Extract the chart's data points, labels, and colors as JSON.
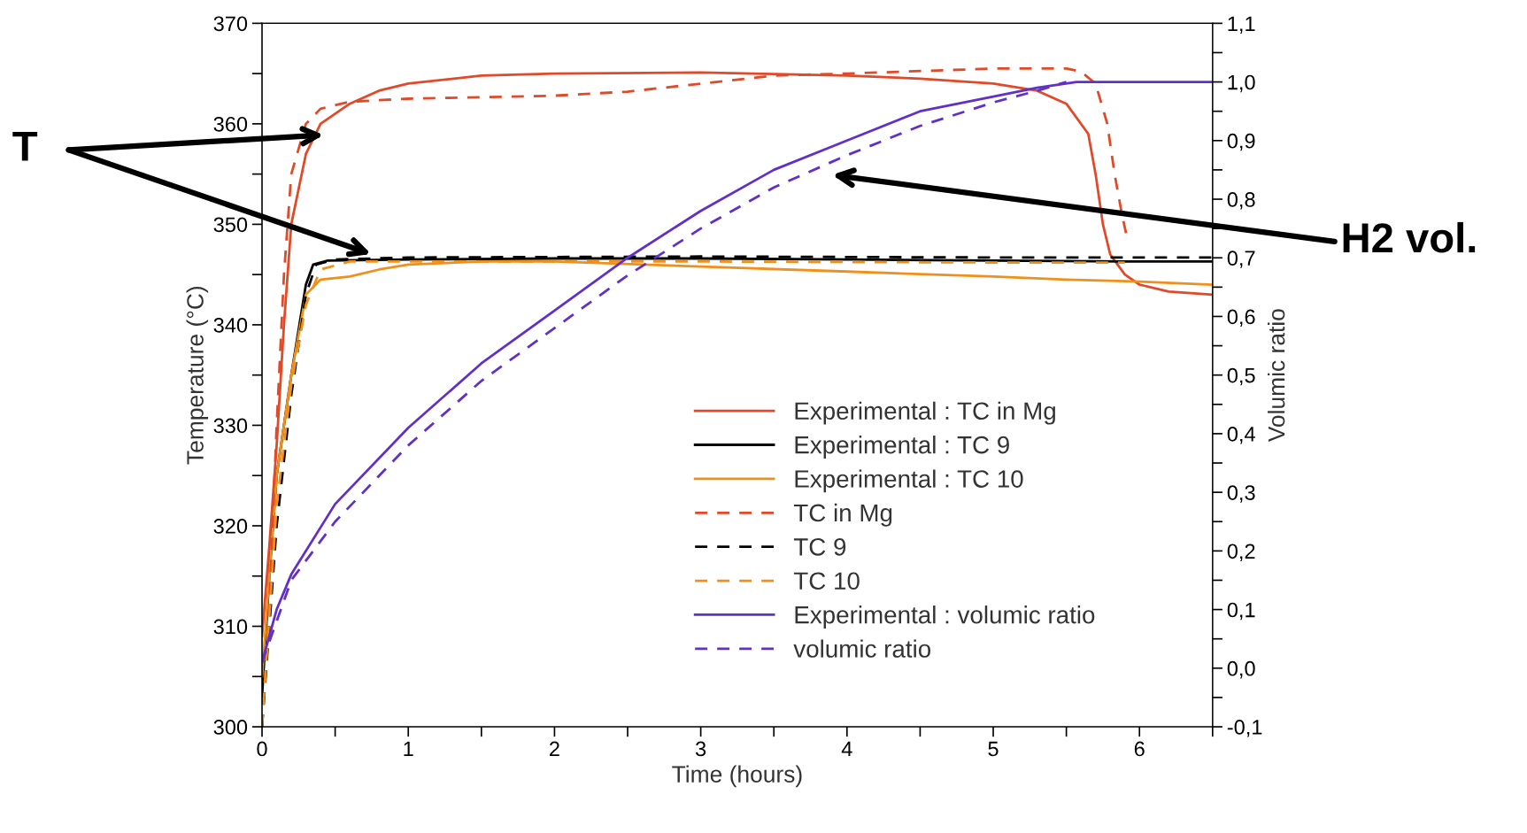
{
  "chart_data": {
    "type": "line",
    "xlabel": "Time (hours)",
    "ylabel": "Temperature (°C)",
    "y2label": "Volumic ratio",
    "xlim": [
      0,
      6.5
    ],
    "xticks": [
      0,
      {
        "value": 0.5,
        "label": null
      },
      1,
      {
        "value": 1.5,
        "label": null
      },
      2,
      {
        "value": 2.5,
        "label": null
      },
      3,
      {
        "value": 3.5,
        "label": null
      },
      4,
      {
        "value": 4.5,
        "label": null
      },
      5,
      {
        "value": 5.5,
        "label": null
      },
      6,
      {
        "value": 6.5,
        "label": null
      }
    ],
    "ylim": [
      300,
      370
    ],
    "yticks": [
      300,
      {
        "value": 305,
        "label": null
      },
      310,
      {
        "value": 315,
        "label": null
      },
      320,
      {
        "value": 325,
        "label": null
      },
      330,
      {
        "value": 335,
        "label": null
      },
      340,
      {
        "value": 345,
        "label": null
      },
      350,
      {
        "value": 355,
        "label": null
      },
      360,
      {
        "value": 365,
        "label": null
      },
      370
    ],
    "y2lim": [
      -0.1,
      1.1
    ],
    "y2ticks": [
      {
        "value": -0.1,
        "label": "-0,1"
      },
      {
        "value": -0.05,
        "label": null
      },
      {
        "value": 0.0,
        "label": "0,0"
      },
      {
        "value": 0.05,
        "label": null
      },
      {
        "value": 0.1,
        "label": "0,1"
      },
      {
        "value": 0.15,
        "label": null
      },
      {
        "value": 0.2,
        "label": "0,2"
      },
      {
        "value": 0.25,
        "label": null
      },
      {
        "value": 0.3,
        "label": "0,3"
      },
      {
        "value": 0.35,
        "label": null
      },
      {
        "value": 0.4,
        "label": "0,4"
      },
      {
        "value": 0.45,
        "label": null
      },
      {
        "value": 0.5,
        "label": "0,5"
      },
      {
        "value": 0.55,
        "label": null
      },
      {
        "value": 0.6,
        "label": "0,6"
      },
      {
        "value": 0.65,
        "label": null
      },
      {
        "value": 0.7,
        "label": "0,7"
      },
      {
        "value": 0.75,
        "label": null
      },
      {
        "value": 0.8,
        "label": "0,8"
      },
      {
        "value": 0.85,
        "label": null
      },
      {
        "value": 0.9,
        "label": "0,9"
      },
      {
        "value": 0.95,
        "label": null
      },
      {
        "value": 1.0,
        "label": "1,0"
      },
      {
        "value": 1.05,
        "label": null
      },
      {
        "value": 1.1,
        "label": "1,1"
      }
    ],
    "grid": false,
    "legend": "bottom right",
    "marker": "none",
    "series": [
      {
        "name": "Experimental : TC in Mg",
        "color": "#e04a28",
        "line_style": "solid",
        "x": [
          0,
          0.05,
          0.1,
          0.15,
          0.2,
          0.3,
          0.4,
          0.6,
          0.8,
          1.0,
          1.5,
          2,
          3,
          4,
          4.5,
          5,
          5.3,
          5.5,
          5.65,
          5.7,
          5.75,
          5.8,
          5.9,
          6.0,
          6.2,
          6.5
        ],
        "values": [
          309,
          318,
          328,
          340,
          350,
          357,
          360,
          362,
          363.3,
          364,
          364.8,
          365,
          365.1,
          364.8,
          364.5,
          364,
          363.3,
          362,
          359,
          355,
          350,
          347,
          345,
          344,
          343.3,
          343
        ]
      },
      {
        "name": "Experimental : TC 9",
        "color": "#000000",
        "line_style": "solid",
        "x": [
          0,
          0.05,
          0.1,
          0.2,
          0.3,
          0.35,
          0.45,
          1,
          2,
          3,
          4,
          5,
          6,
          6.5
        ],
        "values": [
          303,
          315,
          325,
          335,
          344,
          346,
          346.4,
          346.5,
          346.6,
          346.6,
          346.5,
          346.4,
          346.3,
          346.3
        ]
      },
      {
        "name": "Experimental : TC 10",
        "color": "#f0901c",
        "line_style": "solid",
        "x": [
          0,
          0.1,
          0.2,
          0.3,
          0.4,
          0.6,
          0.8,
          1,
          1.5,
          2,
          3,
          4,
          5,
          5.5,
          6,
          6.5
        ],
        "values": [
          305,
          325,
          335,
          343,
          344.5,
          344.8,
          345.5,
          346,
          346.3,
          346.3,
          345.8,
          345.3,
          344.8,
          344.5,
          344.3,
          344
        ]
      },
      {
        "name": "TC in Mg",
        "color": "#e04a28",
        "line_style": "dashed",
        "x": [
          0,
          0.05,
          0.1,
          0.15,
          0.2,
          0.3,
          0.4,
          0.6,
          1,
          2,
          2.5,
          3,
          3.5,
          4,
          5,
          5.5,
          5.6,
          5.7,
          5.78,
          5.83,
          5.88,
          5.91
        ],
        "values": [
          300,
          312,
          330,
          345,
          355,
          360,
          361.5,
          362.2,
          362.5,
          362.8,
          363.2,
          364,
          364.8,
          365,
          365.5,
          365.5,
          365.2,
          364,
          360,
          355,
          351,
          349
        ]
      },
      {
        "name": "TC 9",
        "color": "#000000",
        "line_style": "dashed",
        "x": [
          0,
          0.1,
          0.2,
          0.3,
          0.37,
          0.5,
          1,
          3,
          5,
          6.5
        ],
        "values": [
          300,
          320,
          333,
          343,
          346,
          346.5,
          346.7,
          346.8,
          346.7,
          346.7
        ]
      },
      {
        "name": "TC 10",
        "color": "#f0901c",
        "line_style": "dashed",
        "x": [
          0,
          0.1,
          0.2,
          0.3,
          0.4,
          0.6,
          1,
          3,
          5,
          5.9
        ],
        "values": [
          300,
          322,
          334,
          342,
          345.5,
          346.3,
          346.3,
          346.3,
          346.2,
          346.2
        ]
      },
      {
        "name": "Experimental : volumic ratio",
        "color": "#6030c8",
        "line_style": "solid",
        "axis": "y2",
        "x": [
          0,
          0.1,
          0.2,
          0.5,
          1,
          1.5,
          2,
          2.5,
          3,
          3.5,
          4,
          4.5,
          5,
          5.3,
          5.57,
          6,
          6.5
        ],
        "values": [
          0.01,
          0.1,
          0.16,
          0.28,
          0.41,
          0.52,
          0.61,
          0.7,
          0.78,
          0.85,
          0.9,
          0.95,
          0.975,
          0.99,
          1.0,
          1.0,
          1.0
        ]
      },
      {
        "name": "volumic ratio",
        "color": "#6030c8",
        "line_style": "dashed",
        "axis": "y2",
        "x": [
          0,
          0.2,
          0.5,
          1,
          1.5,
          2,
          2.5,
          3,
          3.5,
          4,
          4.5,
          5,
          5.3,
          5.5
        ],
        "values": [
          0.01,
          0.15,
          0.25,
          0.38,
          0.49,
          0.58,
          0.67,
          0.75,
          0.82,
          0.875,
          0.925,
          0.965,
          0.985,
          1.0
        ]
      }
    ],
    "annotations": [
      "T",
      "H2 vol."
    ]
  }
}
